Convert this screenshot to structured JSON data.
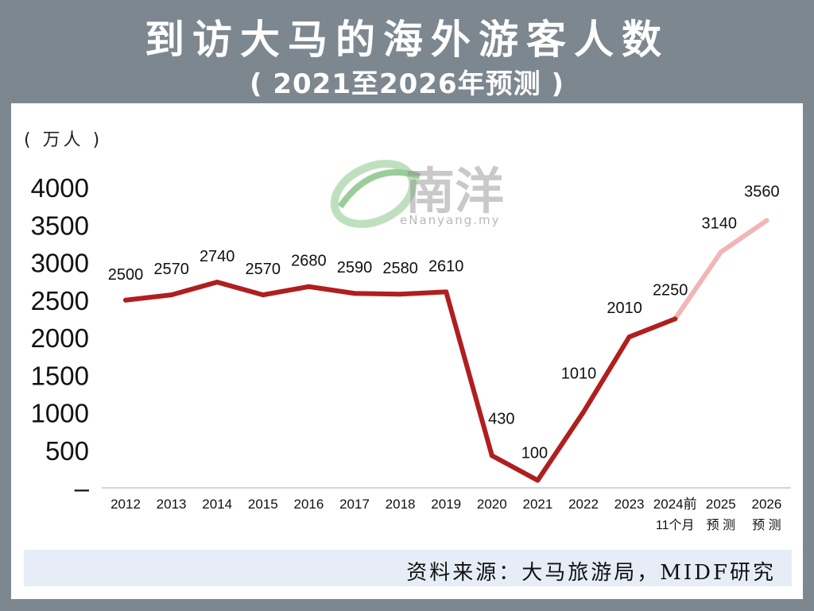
{
  "header": {
    "title": "到访大马的海外游客人数",
    "subtitle": "( 2021至2026年预测 )"
  },
  "unit_label": "( 万人 )",
  "source": "资料来源：大马旅游局，MIDF研究",
  "watermark": {
    "logo_text": "南洋",
    "url": "eNanyang.my"
  },
  "colors": {
    "background": "#7d8790",
    "line_actual": "#b01e1e",
    "line_forecast": "#f2b5b5",
    "source_bar": "#e6edf7"
  },
  "chart_data": {
    "type": "line",
    "title": "到访大马的海外游客人数",
    "subtitle": "( 2021至2026年预测 )",
    "ylabel": "( 万人 )",
    "ylim": [
      0,
      4000
    ],
    "y_ticks": [
      "–",
      "500",
      "1000",
      "1500",
      "2000",
      "2500",
      "3000",
      "3500",
      "4000"
    ],
    "y_tick_values": [
      0,
      500,
      1000,
      1500,
      2000,
      2500,
      3000,
      3500,
      4000
    ],
    "categories": [
      {
        "line1": "2012",
        "line2": ""
      },
      {
        "line1": "2013",
        "line2": ""
      },
      {
        "line1": "2014",
        "line2": ""
      },
      {
        "line1": "2015",
        "line2": ""
      },
      {
        "line1": "2016",
        "line2": ""
      },
      {
        "line1": "2017",
        "line2": ""
      },
      {
        "line1": "2018",
        "line2": ""
      },
      {
        "line1": "2019",
        "line2": ""
      },
      {
        "line1": "2020",
        "line2": ""
      },
      {
        "line1": "2021",
        "line2": ""
      },
      {
        "line1": "2022",
        "line2": ""
      },
      {
        "line1": "2023",
        "line2": ""
      },
      {
        "line1": "2024前",
        "line2": "11个月"
      },
      {
        "line1": "2025",
        "line2": "预 测"
      },
      {
        "line1": "2026",
        "line2": "预 测"
      }
    ],
    "values": [
      2500,
      2570,
      2740,
      2570,
      2680,
      2590,
      2580,
      2610,
      430,
      100,
      1010,
      2010,
      2250,
      3140,
      3560
    ],
    "data_labels": [
      "2500",
      "2570",
      "2740",
      "2570",
      "2680",
      "2590",
      "2580",
      "2610",
      "430",
      "100",
      "1010",
      "2010",
      "2250",
      "3140",
      "3560"
    ],
    "forecast_start_index": 12,
    "grid": false
  }
}
